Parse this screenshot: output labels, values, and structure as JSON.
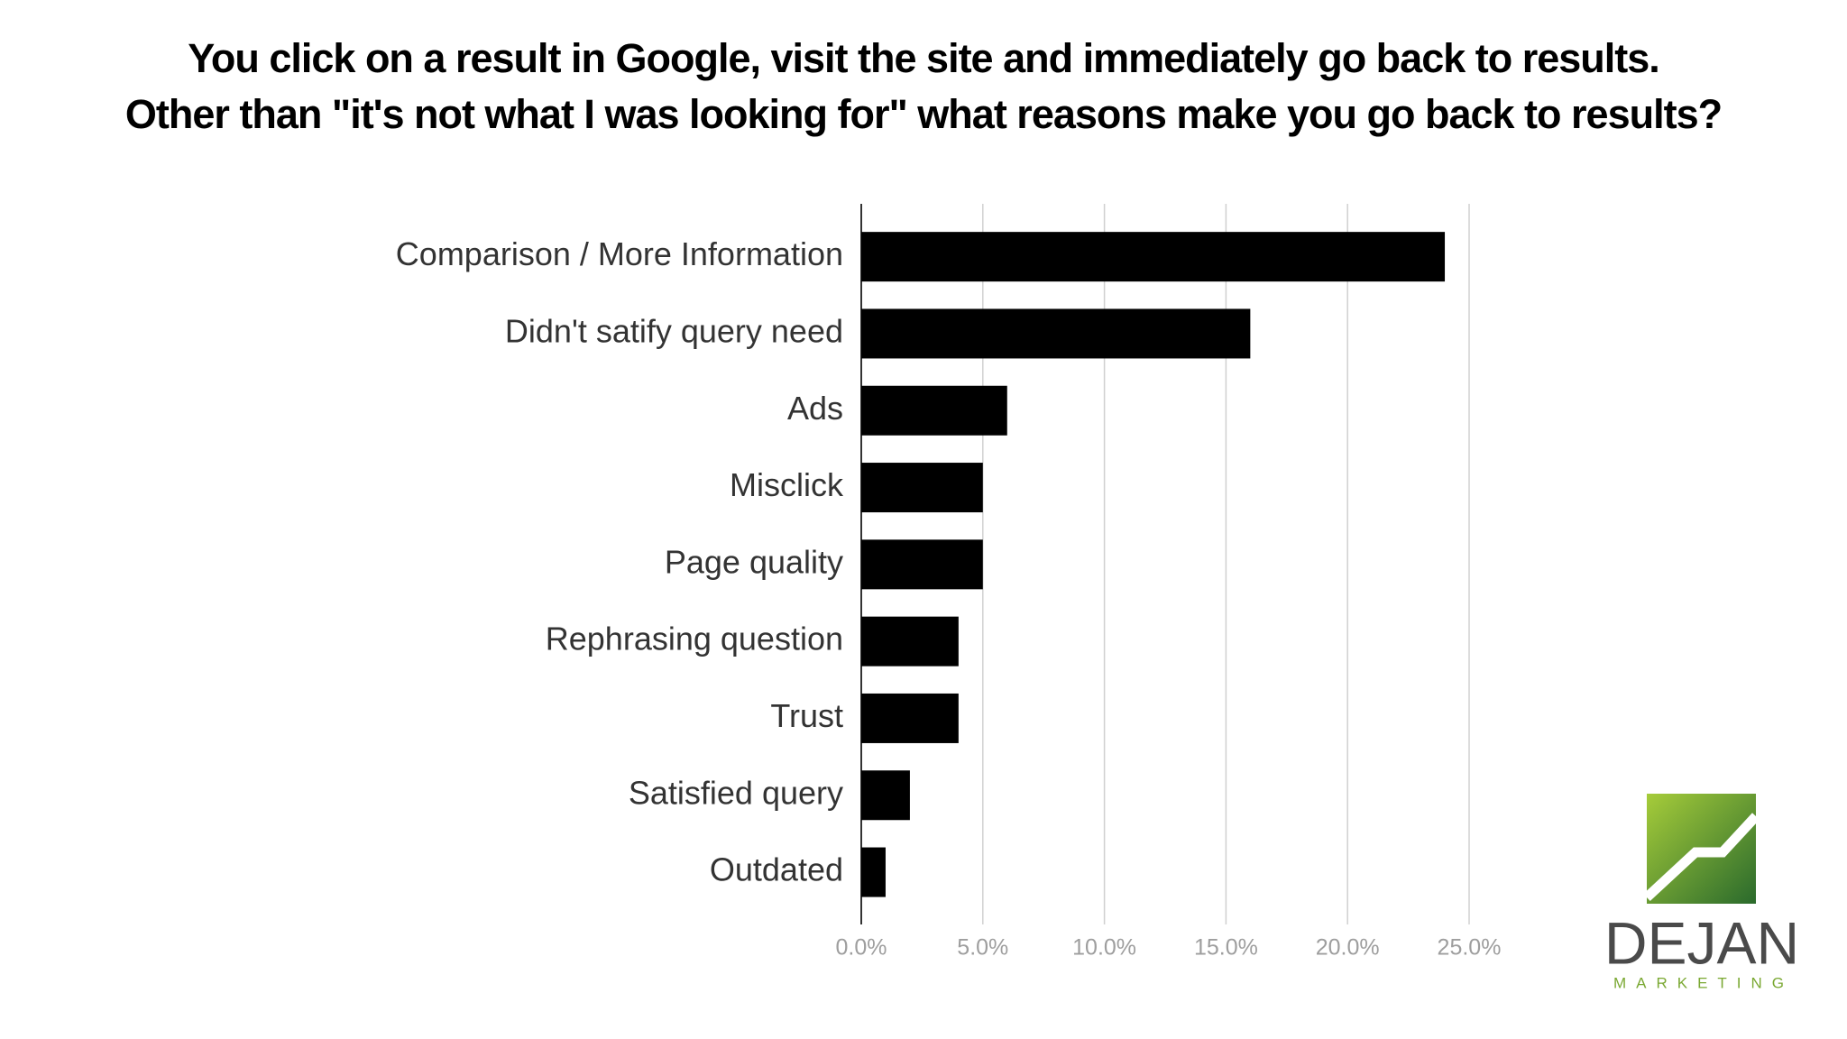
{
  "chart_data": {
    "type": "hbar",
    "title": [
      "You click on a result in Google, visit the site and immediately go back to results.",
      "Other than \"it's not what I was looking for\" what reasons make you go back to results?"
    ],
    "categories": [
      "Comparison / More Information",
      "Didn't satify query need",
      "Ads",
      "Misclick",
      "Page quality",
      "Rephrasing question",
      "Trust",
      "Satisfied query",
      "Outdated"
    ],
    "values": [
      24.0,
      16.0,
      6.0,
      5.0,
      5.0,
      4.0,
      4.0,
      2.0,
      1.0
    ],
    "color": "#000000",
    "xlim": [
      0,
      25
    ],
    "xticks": [
      {
        "value": 0,
        "label": "0.0%"
      },
      {
        "value": 5,
        "label": "5.0%"
      },
      {
        "value": 10,
        "label": "10.0%"
      },
      {
        "value": 15,
        "label": "15.0%"
      },
      {
        "value": 20,
        "label": "20.0%"
      },
      {
        "value": 25,
        "label": "25.0%"
      }
    ],
    "grid": true
  },
  "logo": {
    "name": "DEJAN",
    "tagline": "MARKETING"
  }
}
